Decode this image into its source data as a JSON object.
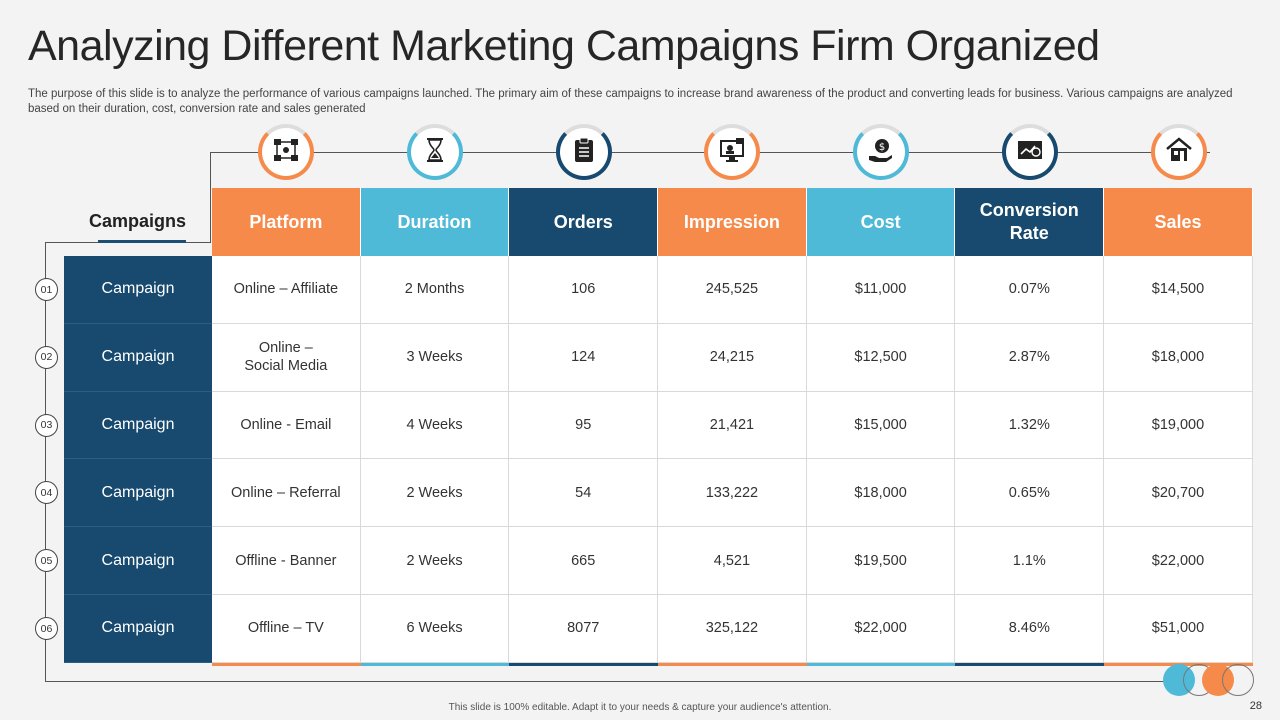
{
  "title": "Analyzing Different Marketing Campaigns Firm Organized",
  "subtitle": "The purpose of this slide is to analyze the performance of various campaigns launched. The primary aim of these campaigns to increase brand awareness of the product and converting leads for business. Various campaigns are analyzed based on their duration, cost, conversion rate and sales generated",
  "row_header": "Campaigns",
  "columns": [
    {
      "label": "Platform",
      "color": "#f58a4b",
      "icon": "network-icon"
    },
    {
      "label": "Duration",
      "color": "#4fb9d8",
      "icon": "hourglass-icon"
    },
    {
      "label": "Orders",
      "color": "#174a6e",
      "icon": "clipboard-icon"
    },
    {
      "label": "Impression",
      "color": "#f58a4b",
      "icon": "monitor-icon"
    },
    {
      "label": "Cost",
      "color": "#4fb9d8",
      "icon": "money-hand-icon"
    },
    {
      "label": "Conversion Rate",
      "color": "#174a6e",
      "icon": "conversion-icon"
    },
    {
      "label": "Sales",
      "color": "#f58a4b",
      "icon": "store-icon"
    }
  ],
  "rows": [
    {
      "num": "01",
      "label": "Campaign",
      "cells": [
        "Online – Affiliate",
        "2 Months",
        "106",
        "245,525",
        "$11,000",
        "0.07%",
        "$14,500"
      ]
    },
    {
      "num": "02",
      "label": "Campaign",
      "cells": [
        "Online –\nSocial Media",
        "3 Weeks",
        "124",
        "24,215",
        "$12,500",
        "2.87%",
        "$18,000"
      ]
    },
    {
      "num": "03",
      "label": "Campaign",
      "cells": [
        "Online - Email",
        "4 Weeks",
        "95",
        "21,421",
        "$15,000",
        "1.32%",
        "$19,000"
      ]
    },
    {
      "num": "04",
      "label": "Campaign",
      "cells": [
        "Online – Referral",
        "2 Weeks",
        "54",
        "133,222",
        "$18,000",
        "0.65%",
        "$20,700"
      ]
    },
    {
      "num": "05",
      "label": "Campaign",
      "cells": [
        "Offline - Banner",
        "2 Weeks",
        "665",
        "4,521",
        "$19,500",
        "1.1%",
        "$22,000"
      ]
    },
    {
      "num": "06",
      "label": "Campaign",
      "cells": [
        "Offline – TV",
        "6 Weeks",
        "8077",
        "325,122",
        "$22,000",
        "8.46%",
        "$51,000"
      ]
    }
  ],
  "footer": "This slide is 100% editable. Adapt it to your needs & capture your audience's attention.",
  "page_number": "28"
}
